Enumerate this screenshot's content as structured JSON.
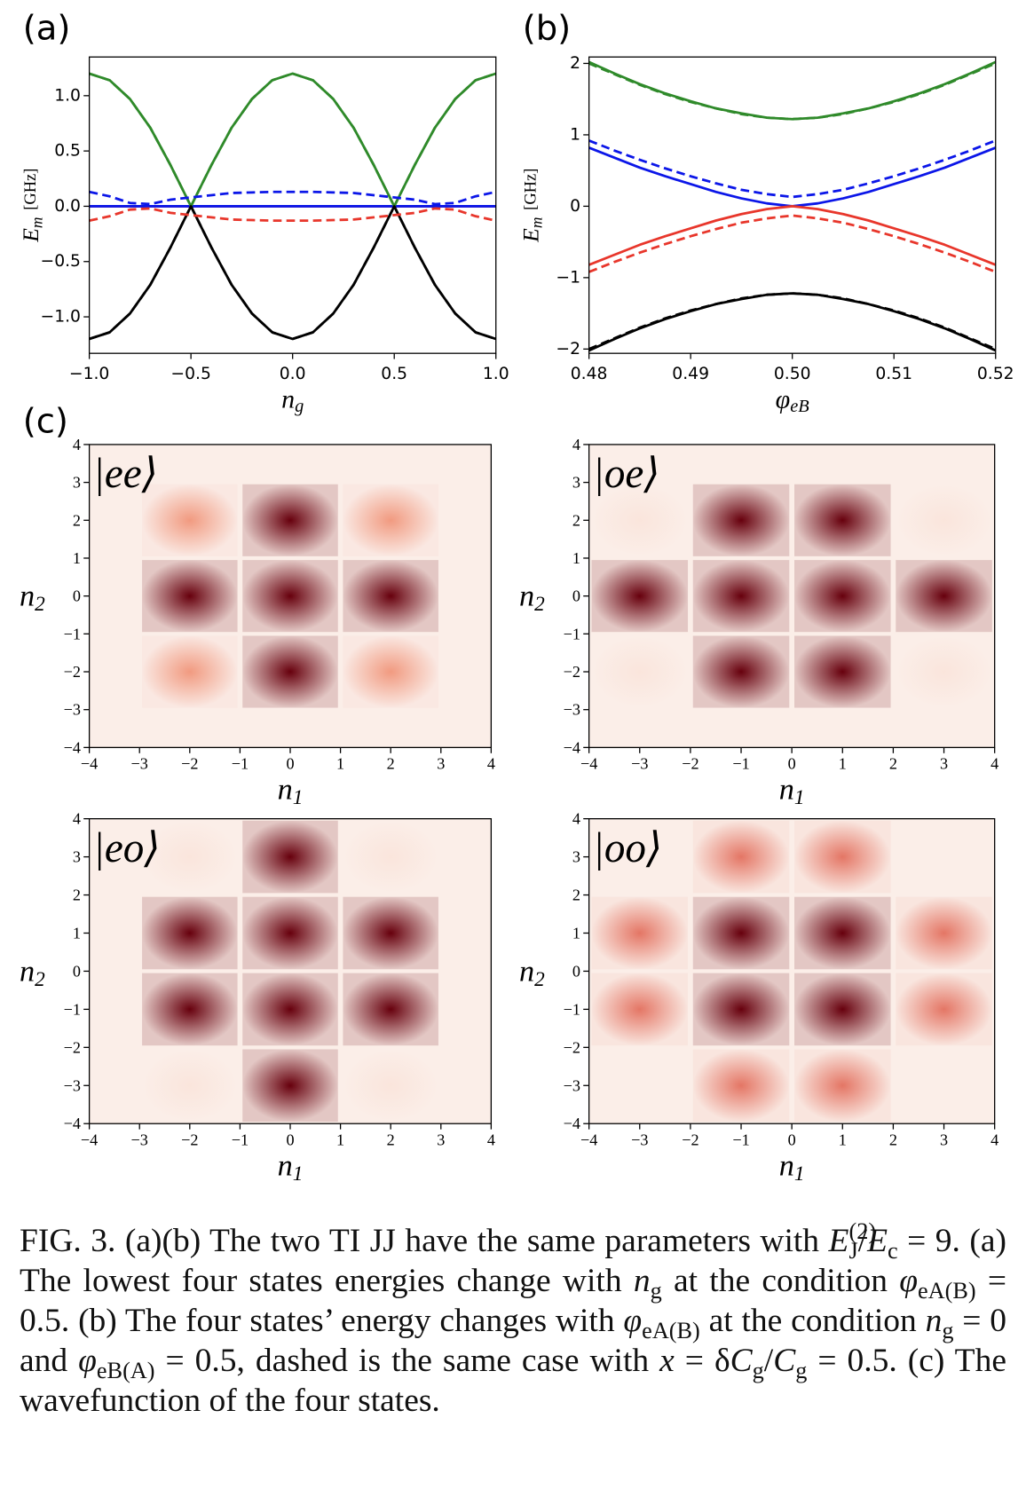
{
  "chart_data": [
    {
      "type": "line",
      "panel": "(a)",
      "xlabel": {
        "base": "n",
        "sub": "g"
      },
      "ylabel": {
        "base": "E",
        "sub": "m",
        "unit": "[GHz]"
      },
      "xlim": [
        -1,
        1
      ],
      "ylim": [
        -1.33,
        1.35
      ],
      "xticks": [
        {
          "value": -1,
          "label": "−1.0"
        },
        {
          "value": -0.5,
          "label": "−0.5"
        },
        {
          "value": 0,
          "label": "0.0"
        },
        0.5,
        {
          "value": 1,
          "label": "1.0"
        }
      ],
      "yticks": [
        {
          "value": -1,
          "label": "−1.0"
        },
        {
          "value": -0.5,
          "label": "−0.5"
        },
        {
          "value": 0,
          "label": "0.0"
        },
        0.5,
        {
          "value": 1,
          "label": "1.0"
        }
      ],
      "x": [
        -1,
        -0.9,
        -0.8,
        -0.7,
        -0.6,
        -0.5,
        -0.4,
        -0.3,
        -0.2,
        -0.1,
        0,
        0.1,
        0.2,
        0.3,
        0.4,
        0.5,
        0.6,
        0.7,
        0.8,
        0.9,
        1
      ],
      "series": [
        {
          "color": "#e8362b",
          "dash": false,
          "values": [
            0,
            0,
            0,
            0,
            0,
            0,
            0,
            0,
            0,
            0,
            0,
            0,
            0,
            0,
            0,
            0,
            0,
            0,
            0,
            0,
            0
          ]
        },
        {
          "color": "#0b16e8",
          "dash": false,
          "values": [
            0,
            0,
            0,
            0,
            0,
            0,
            0,
            0,
            0,
            0,
            0,
            0,
            0,
            0,
            0,
            0,
            0,
            0,
            0,
            0,
            0
          ]
        },
        {
          "color": "#2f8a2a",
          "dash": false,
          "values": [
            1.2,
            1.14,
            0.97,
            0.71,
            0.37,
            0,
            0.37,
            0.71,
            0.97,
            1.14,
            1.2,
            1.14,
            0.97,
            0.71,
            0.37,
            0,
            0.37,
            0.71,
            0.97,
            1.14,
            1.2
          ]
        },
        {
          "color": "#2f8a2a",
          "dash": true,
          "values": [
            1.2,
            1.14,
            0.97,
            0.71,
            0.37,
            0,
            0.37,
            0.71,
            0.97,
            1.14,
            1.2,
            1.14,
            0.97,
            0.71,
            0.37,
            0,
            0.37,
            0.71,
            0.97,
            1.14,
            1.2
          ]
        },
        {
          "color": "#000000",
          "dash": false,
          "values": [
            -1.2,
            -1.14,
            -0.97,
            -0.71,
            -0.37,
            0,
            -0.37,
            -0.71,
            -0.97,
            -1.14,
            -1.2,
            -1.14,
            -0.97,
            -0.71,
            -0.37,
            0,
            -0.37,
            -0.71,
            -0.97,
            -1.14,
            -1.2
          ]
        },
        {
          "color": "#000000",
          "dash": true,
          "values": [
            -1.2,
            -1.14,
            -0.97,
            -0.71,
            -0.37,
            0,
            -0.37,
            -0.71,
            -0.97,
            -1.14,
            -1.2,
            -1.14,
            -0.97,
            -0.71,
            -0.37,
            0,
            -0.37,
            -0.71,
            -0.97,
            -1.14,
            -1.2
          ]
        },
        {
          "color": "#0b16e8",
          "dash": true,
          "values": [
            0.13,
            0.09,
            0.03,
            0.02,
            0.06,
            0.08,
            0.1,
            0.12,
            0.125,
            0.13,
            0.13,
            0.13,
            0.125,
            0.12,
            0.1,
            0.08,
            0.06,
            0.02,
            0.03,
            0.09,
            0.13
          ]
        },
        {
          "color": "#e8362b",
          "dash": true,
          "values": [
            -0.13,
            -0.09,
            -0.03,
            -0.02,
            -0.06,
            -0.08,
            -0.1,
            -0.12,
            -0.125,
            -0.13,
            -0.13,
            -0.13,
            -0.125,
            -0.12,
            -0.1,
            -0.08,
            -0.06,
            -0.02,
            -0.03,
            -0.09,
            -0.13
          ]
        }
      ]
    },
    {
      "type": "line",
      "panel": "(b)",
      "xlabel": {
        "base": "φ",
        "sub": "eB"
      },
      "ylabel": {
        "base": "E",
        "sub": "m",
        "unit": "[GHz]"
      },
      "xlim": [
        0.48,
        0.52
      ],
      "ylim": [
        -2.06,
        2.09
      ],
      "xticks": [
        0.48,
        0.49,
        {
          "value": 0.5,
          "label": "0.50"
        },
        0.51,
        0.52
      ],
      "yticks": [
        {
          "value": -2,
          "label": "−2"
        },
        {
          "value": -1,
          "label": "−1"
        },
        0,
        1,
        2
      ],
      "x": [
        0.48,
        0.4825,
        0.485,
        0.4875,
        0.49,
        0.4925,
        0.495,
        0.4975,
        0.5,
        0.5025,
        0.505,
        0.5075,
        0.51,
        0.5125,
        0.515,
        0.5175,
        0.52
      ],
      "series": [
        {
          "color": "#2f8a2a",
          "dash": false,
          "values": [
            2.02,
            1.86,
            1.71,
            1.58,
            1.47,
            1.37,
            1.3,
            1.24,
            1.22,
            1.24,
            1.3,
            1.37,
            1.47,
            1.58,
            1.71,
            1.86,
            2.02
          ]
        },
        {
          "color": "#2f8a2a",
          "dash": true,
          "values": [
            2.0,
            1.85,
            1.7,
            1.57,
            1.46,
            1.37,
            1.29,
            1.24,
            1.22,
            1.24,
            1.29,
            1.37,
            1.46,
            1.57,
            1.7,
            1.85,
            2.0
          ]
        },
        {
          "color": "#0b16e8",
          "dash": false,
          "values": [
            0.82,
            0.68,
            0.54,
            0.42,
            0.31,
            0.2,
            0.11,
            0.04,
            0,
            0.04,
            0.11,
            0.2,
            0.31,
            0.42,
            0.54,
            0.68,
            0.82
          ]
        },
        {
          "color": "#0b16e8",
          "dash": true,
          "values": [
            0.92,
            0.78,
            0.65,
            0.53,
            0.42,
            0.32,
            0.23,
            0.17,
            0.13,
            0.17,
            0.23,
            0.32,
            0.42,
            0.53,
            0.65,
            0.78,
            0.92
          ]
        },
        {
          "color": "#e8362b",
          "dash": false,
          "values": [
            -0.82,
            -0.68,
            -0.54,
            -0.42,
            -0.31,
            -0.2,
            -0.11,
            -0.04,
            0,
            -0.04,
            -0.11,
            -0.2,
            -0.31,
            -0.42,
            -0.54,
            -0.68,
            -0.82
          ]
        },
        {
          "color": "#e8362b",
          "dash": true,
          "values": [
            -0.92,
            -0.78,
            -0.65,
            -0.53,
            -0.42,
            -0.32,
            -0.23,
            -0.17,
            -0.13,
            -0.17,
            -0.23,
            -0.32,
            -0.42,
            -0.53,
            -0.65,
            -0.78,
            -0.92
          ]
        },
        {
          "color": "#000000",
          "dash": false,
          "values": [
            -2.02,
            -1.86,
            -1.71,
            -1.58,
            -1.47,
            -1.37,
            -1.3,
            -1.24,
            -1.22,
            -1.24,
            -1.3,
            -1.37,
            -1.47,
            -1.58,
            -1.71,
            -1.86,
            -2.02
          ]
        },
        {
          "color": "#000000",
          "dash": true,
          "values": [
            -2.0,
            -1.85,
            -1.7,
            -1.57,
            -1.46,
            -1.37,
            -1.29,
            -1.24,
            -1.22,
            -1.24,
            -1.29,
            -1.37,
            -1.46,
            -1.57,
            -1.7,
            -1.85,
            -2.0
          ]
        }
      ]
    },
    {
      "type": "heatmap",
      "panel": "(c)",
      "label": "|ee⟩",
      "xlabel": {
        "base": "n",
        "sub": "1"
      },
      "ylabel": {
        "base": "n",
        "sub": "2"
      },
      "colormap": [
        "#fbeee8",
        "#f3a084",
        "#c8272b",
        "#67000d"
      ],
      "xlim": [
        -4,
        4
      ],
      "ylim": [
        -4,
        4
      ],
      "xticks": [
        {
          "value": -4,
          "label": "−4"
        },
        {
          "value": -3,
          "label": "−3"
        },
        {
          "value": -2,
          "label": "−2"
        },
        {
          "value": -1,
          "label": "−1"
        },
        0,
        1,
        2,
        3,
        4
      ],
      "yticks": [
        {
          "value": -4,
          "label": "−4"
        },
        {
          "value": -3,
          "label": "−3"
        },
        {
          "value": -2,
          "label": "−2"
        },
        {
          "value": -1,
          "label": "−1"
        },
        0,
        1,
        2,
        3,
        4
      ],
      "x": [
        -2,
        0,
        2,
        -2,
        0,
        2,
        -2,
        0,
        2
      ],
      "y": [
        2,
        2,
        2,
        0,
        0,
        0,
        -2,
        -2,
        -2
      ],
      "values": [
        0.35,
        1,
        0.35,
        1,
        1,
        1,
        0.35,
        1,
        0.35
      ]
    },
    {
      "type": "heatmap",
      "label": "|oe⟩",
      "xlabel": {
        "base": "n",
        "sub": "1"
      },
      "ylabel": {
        "base": "n",
        "sub": "2"
      },
      "colormap": [
        "#fbeee8",
        "#f3a084",
        "#c8272b",
        "#67000d"
      ],
      "xlim": [
        -4,
        4
      ],
      "ylim": [
        -4,
        4
      ],
      "xticks": [
        {
          "value": -4,
          "label": "−4"
        },
        {
          "value": -3,
          "label": "−3"
        },
        {
          "value": -2,
          "label": "−2"
        },
        {
          "value": -1,
          "label": "−1"
        },
        0,
        1,
        2,
        3,
        4
      ],
      "yticks": [
        {
          "value": -4,
          "label": "−4"
        },
        {
          "value": -3,
          "label": "−3"
        },
        {
          "value": -2,
          "label": "−2"
        },
        {
          "value": -1,
          "label": "−1"
        },
        0,
        1,
        2,
        3,
        4
      ],
      "x": [
        -3,
        -1,
        1,
        3,
        -3,
        -1,
        1,
        3,
        -3,
        -1,
        1,
        3
      ],
      "y": [
        2,
        2,
        2,
        2,
        0,
        0,
        0,
        0,
        -2,
        -2,
        -2,
        -2
      ],
      "values": [
        0.04,
        1,
        1,
        0.04,
        1,
        1,
        1,
        1,
        0.04,
        1,
        1,
        0.04
      ]
    },
    {
      "type": "heatmap",
      "label": "|eo⟩",
      "xlabel": {
        "base": "n",
        "sub": "1"
      },
      "ylabel": {
        "base": "n",
        "sub": "2"
      },
      "colormap": [
        "#fbeee8",
        "#f3a084",
        "#c8272b",
        "#67000d"
      ],
      "xlim": [
        -4,
        4
      ],
      "ylim": [
        -4,
        4
      ],
      "xticks": [
        {
          "value": -4,
          "label": "−4"
        },
        {
          "value": -3,
          "label": "−3"
        },
        {
          "value": -2,
          "label": "−2"
        },
        {
          "value": -1,
          "label": "−1"
        },
        0,
        1,
        2,
        3,
        4
      ],
      "yticks": [
        {
          "value": -4,
          "label": "−4"
        },
        {
          "value": -3,
          "label": "−3"
        },
        {
          "value": -2,
          "label": "−2"
        },
        {
          "value": -1,
          "label": "−1"
        },
        0,
        1,
        2,
        3,
        4
      ],
      "x": [
        -2,
        0,
        2,
        -2,
        0,
        2,
        -2,
        0,
        2,
        -2,
        0,
        2
      ],
      "y": [
        3,
        3,
        3,
        1,
        1,
        1,
        -1,
        -1,
        -1,
        -3,
        -3,
        -3
      ],
      "values": [
        0.04,
        1,
        0.04,
        1,
        1,
        1,
        1,
        1,
        1,
        0.04,
        1,
        0.04
      ]
    },
    {
      "type": "heatmap",
      "label": "|oo⟩",
      "xlabel": {
        "base": "n",
        "sub": "1"
      },
      "ylabel": {
        "base": "n",
        "sub": "2"
      },
      "colormap": [
        "#fbeee8",
        "#f3a084",
        "#c8272b",
        "#67000d"
      ],
      "xlim": [
        -4,
        4
      ],
      "ylim": [
        -4,
        4
      ],
      "xticks": [
        {
          "value": -4,
          "label": "−4"
        },
        {
          "value": -3,
          "label": "−3"
        },
        {
          "value": -2,
          "label": "−2"
        },
        {
          "value": -1,
          "label": "−1"
        },
        0,
        1,
        2,
        3,
        4
      ],
      "yticks": [
        {
          "value": -4,
          "label": "−4"
        },
        {
          "value": -3,
          "label": "−3"
        },
        {
          "value": -2,
          "label": "−2"
        },
        {
          "value": -1,
          "label": "−1"
        },
        0,
        1,
        2,
        3,
        4
      ],
      "x": [
        -1,
        1,
        -3,
        -1,
        1,
        3,
        -3,
        -1,
        1,
        3,
        -1,
        1
      ],
      "y": [
        3,
        3,
        1,
        1,
        1,
        1,
        -1,
        -1,
        -1,
        -1,
        -3,
        -3
      ],
      "values": [
        0.45,
        0.45,
        0.45,
        1,
        1,
        0.45,
        0.45,
        1,
        1,
        0.45,
        0.45,
        0.45
      ]
    }
  ],
  "caption": [
    "FIG. 3. (a)(b) The two TI JJ have the same parameters with ",
    {
      "t": "E",
      "s": "i"
    },
    {
      "t": "(2)",
      "s": "sup"
    },
    {
      "t": "J",
      "s": "sub"
    },
    "/",
    {
      "t": "E",
      "s": "i"
    },
    {
      "t": "c",
      "s": "sub"
    },
    " = 9. (a) The lowest four states energies change with ",
    {
      "t": "n",
      "s": "i"
    },
    {
      "t": "g",
      "s": "sub"
    },
    " at the condition ",
    {
      "t": "φ",
      "s": "i"
    },
    {
      "t": "eA(B)",
      "s": "sub"
    },
    " = 0.5. (b) The four states’ energy changes with ",
    {
      "t": "φ",
      "s": "i"
    },
    {
      "t": "eA(B)",
      "s": "sub"
    },
    " at the condition ",
    {
      "t": "n",
      "s": "i"
    },
    {
      "t": "g",
      "s": "sub"
    },
    " = 0 and ",
    {
      "t": "φ",
      "s": "i"
    },
    {
      "t": "eB(A)",
      "s": "sub"
    },
    " = 0.5, dashed is the same case with ",
    {
      "t": "x",
      "s": "i"
    },
    " = δ",
    {
      "t": "C",
      "s": "i"
    },
    {
      "t": "g",
      "s": "sub"
    },
    "/",
    {
      "t": "C",
      "s": "i"
    },
    {
      "t": "g",
      "s": "sub"
    },
    " = 0.5. (c) The wavefunction of the four states."
  ]
}
